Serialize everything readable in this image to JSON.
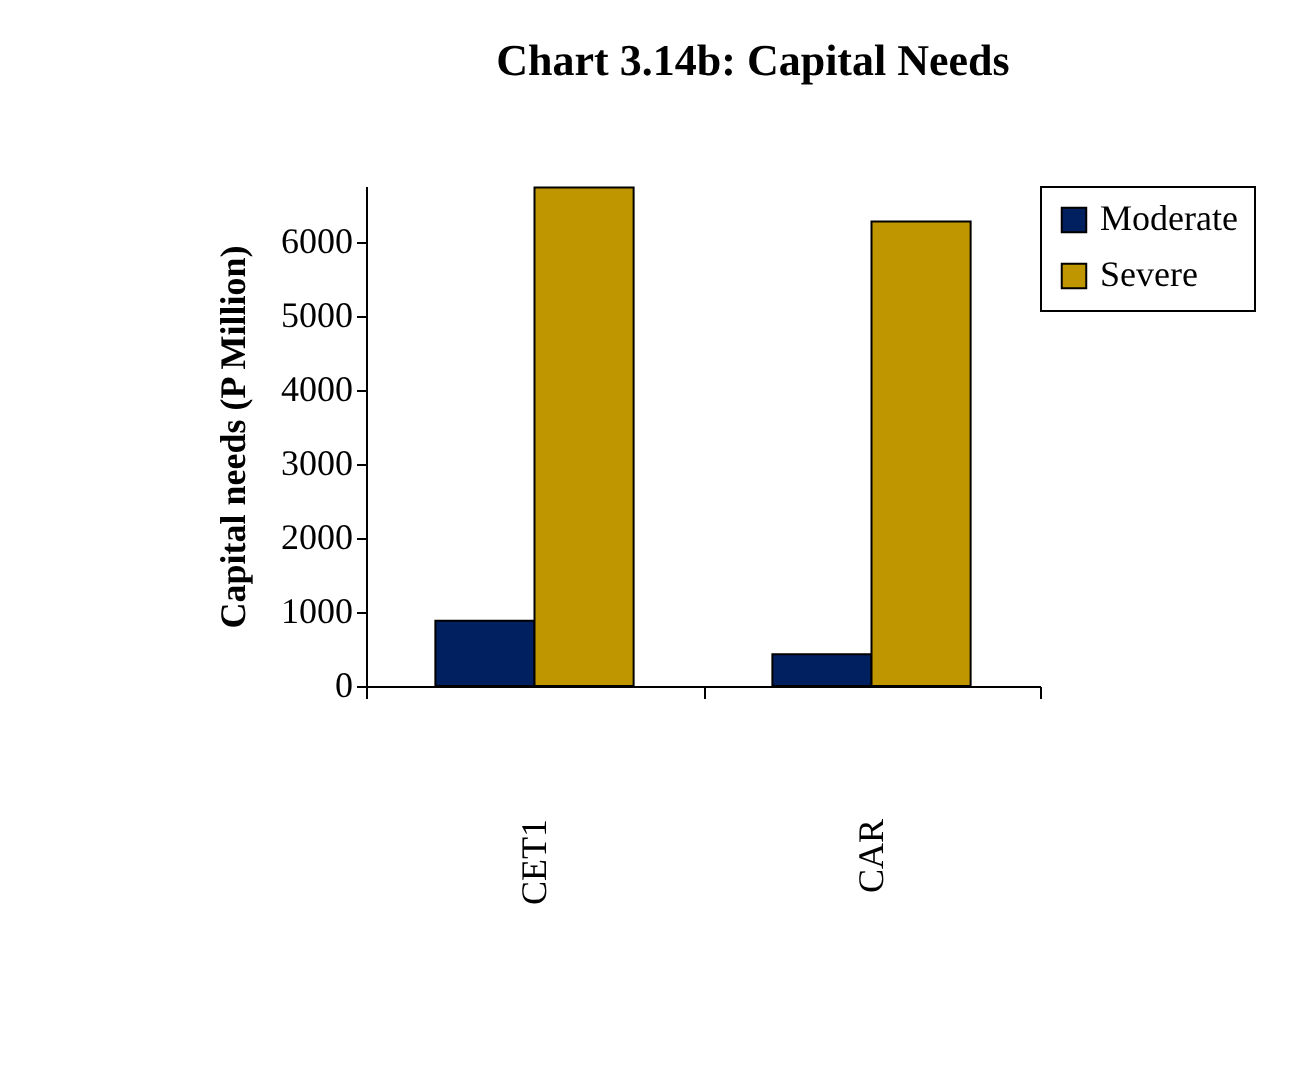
{
  "chart_data": {
    "type": "bar",
    "title": "Chart 3.14b: Capital Needs",
    "ylabel": "Capital needs (P Million)",
    "categories": [
      "CET1",
      "CAR"
    ],
    "series": [
      {
        "name": "Moderate",
        "color": "#002060",
        "values": [
          880,
          430
        ]
      },
      {
        "name": "Severe",
        "color": "#c09600",
        "values": [
          6730,
          6270
        ]
      }
    ],
    "ylim": [
      0,
      6750
    ],
    "yticks": [
      0,
      1000,
      2000,
      3000,
      4000,
      5000,
      6000
    ],
    "grid": false,
    "legend": "right"
  }
}
